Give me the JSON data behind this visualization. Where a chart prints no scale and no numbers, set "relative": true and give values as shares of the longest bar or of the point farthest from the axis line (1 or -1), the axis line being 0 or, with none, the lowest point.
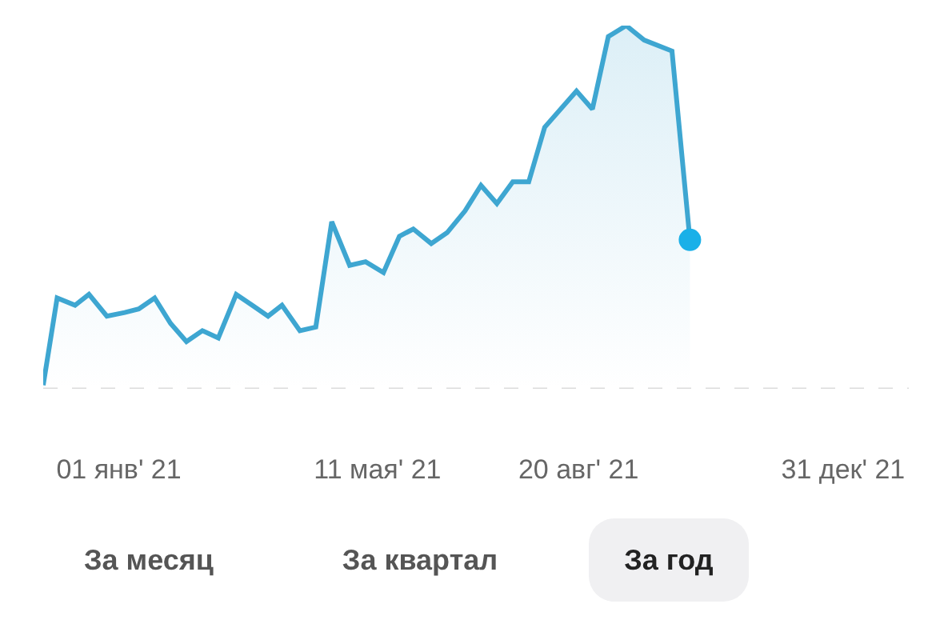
{
  "chart_data": {
    "type": "area",
    "relative": true,
    "x": [
      "2020-11-24",
      "2020-12-01",
      "2020-12-10",
      "2020-12-17",
      "2020-12-26",
      "2021-01-04",
      "2021-01-11",
      "2021-01-19",
      "2021-01-27",
      "2021-02-04",
      "2021-02-12",
      "2021-02-20",
      "2021-03-01",
      "2021-03-09",
      "2021-03-17",
      "2021-03-24",
      "2021-04-02",
      "2021-04-10",
      "2021-04-18",
      "2021-04-27",
      "2021-05-05",
      "2021-05-14",
      "2021-05-22",
      "2021-05-29",
      "2021-06-07",
      "2021-06-15",
      "2021-06-24",
      "2021-07-02",
      "2021-07-10",
      "2021-07-18",
      "2021-07-26",
      "2021-08-03",
      "2021-08-19",
      "2021-08-27",
      "2021-09-04",
      "2021-09-13",
      "2021-09-22",
      "2021-10-06",
      "2021-10-15"
    ],
    "series": [
      {
        "color": "#3ea6d1",
        "marker": "none",
        "values": [
          0.01,
          0.25,
          0.23,
          0.26,
          0.2,
          0.21,
          0.22,
          0.25,
          0.18,
          0.13,
          0.16,
          0.14,
          0.26,
          0.23,
          0.2,
          0.23,
          0.16,
          0.17,
          0.46,
          0.34,
          0.35,
          0.32,
          0.42,
          0.44,
          0.4,
          0.43,
          0.49,
          0.56,
          0.51,
          0.57,
          0.57,
          0.72,
          0.82,
          0.77,
          0.97,
          1,
          0.96,
          0.93,
          0.41
        ]
      },
      {
        "type": "scatter",
        "color": "#1ab0e8",
        "marker": "circle",
        "x": [
          "2021-10-15"
        ],
        "values": [
          0.41
        ]
      }
    ],
    "xlim": [
      "2020-11-24",
      "2022-02-02"
    ],
    "xticks": [
      {
        "value": "2021-01-01",
        "label": "01 янв' 21"
      },
      {
        "value": "2021-05-11",
        "label": "11 мая' 21"
      },
      {
        "value": "2021-08-20",
        "label": "20 авг' 21"
      },
      {
        "value": "2021-12-31",
        "label": "31 дек' 21"
      }
    ],
    "ref_lines": [
      {
        "axis": "y",
        "value": 0,
        "color": "#dcdcdc",
        "line_style": "dashed"
      }
    ],
    "grid": false,
    "annotations": [
      "За месяц",
      "За квартал",
      "За год"
    ]
  }
}
